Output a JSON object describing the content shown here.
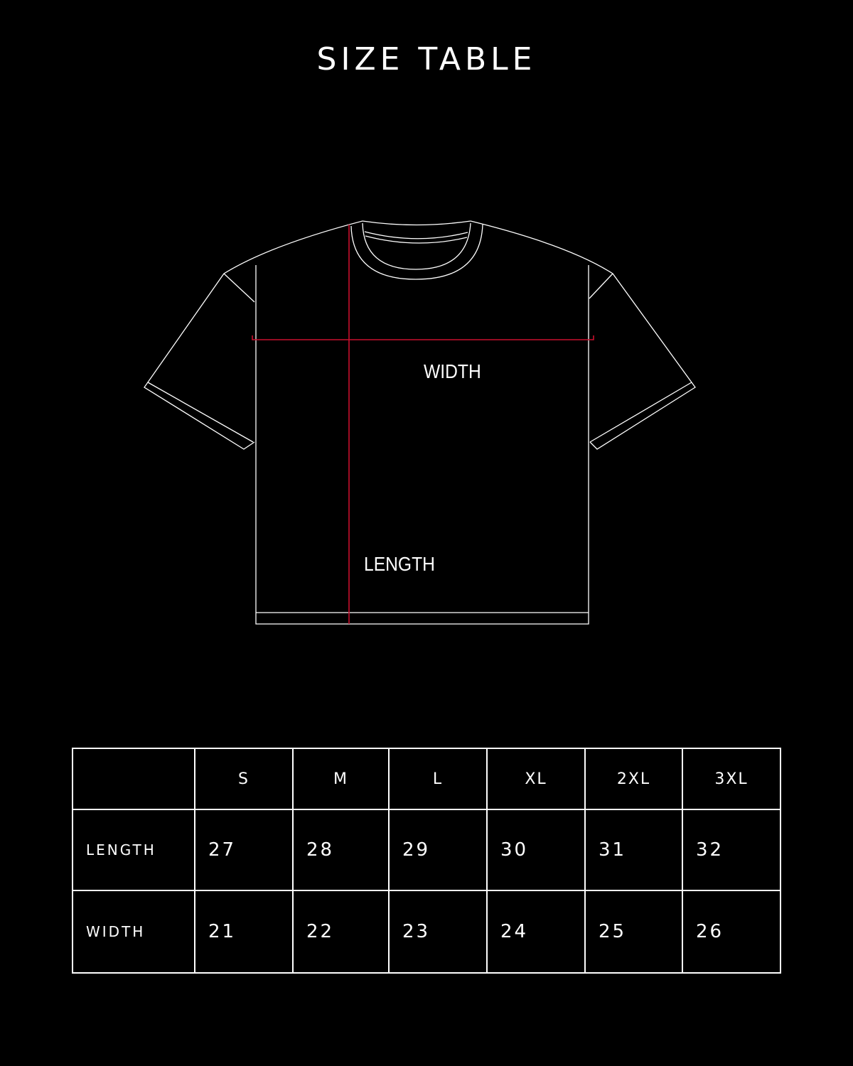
{
  "title": "SIZE TABLE",
  "diagram": {
    "width_label": "WIDTH",
    "length_label": "LENGTH",
    "outline_color": "#ffffff",
    "measure_color": "#c8102e"
  },
  "table": {
    "sizes": [
      "S",
      "M",
      "L",
      "XL",
      "2XL",
      "3XL"
    ],
    "rows": [
      {
        "label": "LENGTH",
        "values": [
          "27",
          "28",
          "29",
          "30",
          "31",
          "32"
        ]
      },
      {
        "label": "WIDTH",
        "values": [
          "21",
          "22",
          "23",
          "24",
          "25",
          "26"
        ]
      }
    ]
  }
}
